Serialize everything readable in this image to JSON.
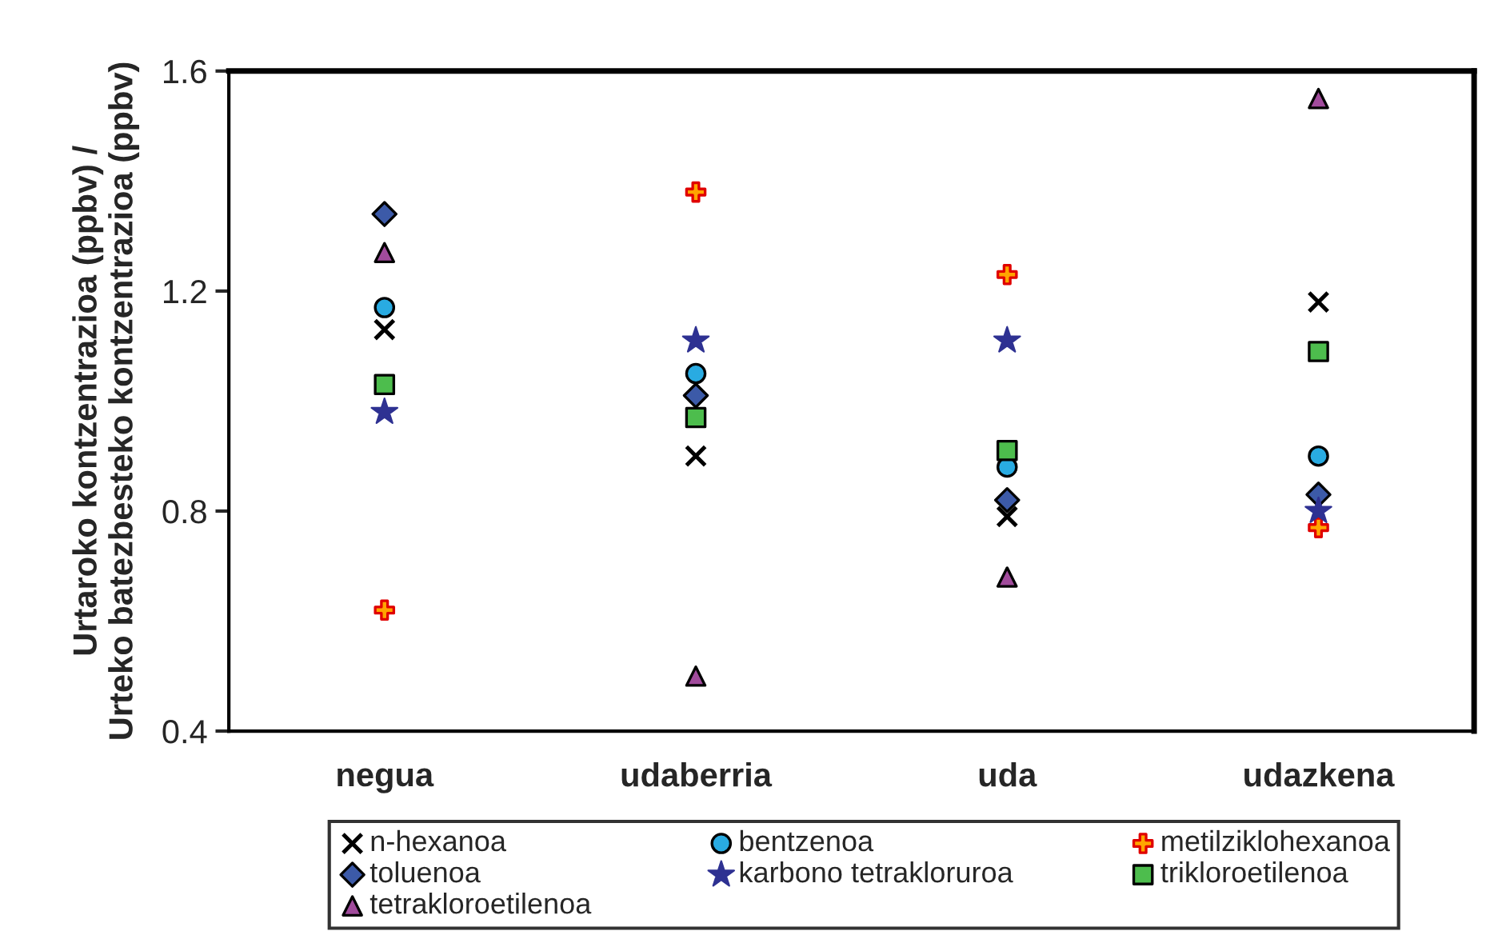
{
  "chart_data": {
    "type": "scatter",
    "ylabel": "Urtaroko kontzentrazioa (ppbv) /\nUrteko batezbesteko kontzentrazioa (ppbv)",
    "categories": [
      "negua",
      "udaberria",
      "uda",
      "udazkena"
    ],
    "ylim": [
      0.4,
      1.6
    ],
    "yticks": [
      0.4,
      0.8,
      1.2,
      1.6
    ],
    "grid": false,
    "legend": "bottom",
    "series": [
      {
        "name": "n-hexanoa",
        "color": "#000000",
        "marker": "cross",
        "values": [
          1.13,
          0.9,
          0.79,
          1.18
        ]
      },
      {
        "name": "bentzenoa",
        "color": "#29abe2",
        "marker": "circle",
        "values": [
          1.17,
          1.05,
          0.88,
          0.9
        ]
      },
      {
        "name": "metilziklohexanoa",
        "color": "#ffa500",
        "marker": "plus",
        "values": [
          0.62,
          1.38,
          1.23,
          0.77
        ]
      },
      {
        "name": "toluenoa",
        "color": "#3c5aa8",
        "marker": "diamond",
        "values": [
          1.34,
          1.01,
          0.82,
          0.83
        ]
      },
      {
        "name": "karbono tetrakloruroa",
        "color": "#2e3192",
        "marker": "star",
        "values": [
          0.98,
          1.11,
          1.11,
          0.8
        ]
      },
      {
        "name": "trikloroetilenoa",
        "color": "#4dbd4d",
        "marker": "square",
        "values": [
          1.03,
          0.97,
          0.91,
          1.09
        ]
      },
      {
        "name": "tetrakloroetilenoa",
        "color": "#a14b9c",
        "marker": "triangle",
        "values": [
          1.27,
          0.5,
          0.68,
          1.55
        ]
      }
    ]
  }
}
